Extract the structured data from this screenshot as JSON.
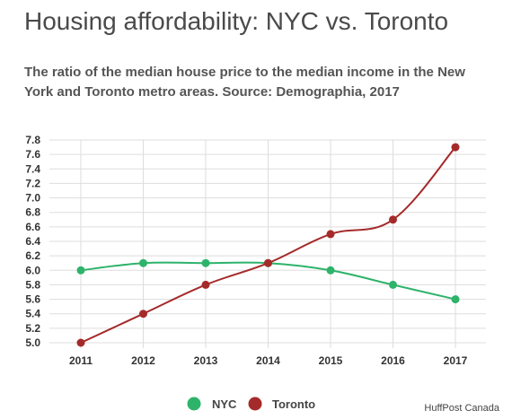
{
  "title": "Housing affordability: NYC vs. Toronto",
  "subtitle": "The ratio of the median house price to the median income in the New York and Toronto metro areas. Source: Demographia, 2017",
  "credit": "HuffPost Canada",
  "chart_data": {
    "type": "line",
    "x": [
      "2011",
      "2012",
      "2013",
      "2014",
      "2015",
      "2016",
      "2017"
    ],
    "series": [
      {
        "name": "NYC",
        "color": "#2db36a",
        "values": [
          6.0,
          6.1,
          6.1,
          6.1,
          6.0,
          5.8,
          5.6
        ]
      },
      {
        "name": "Toronto",
        "color": "#a52a2a",
        "values": [
          5.0,
          5.4,
          5.8,
          6.1,
          6.5,
          6.7,
          7.7
        ]
      }
    ],
    "yticks": [
      "5.0",
      "5.2",
      "5.4",
      "5.6",
      "5.8",
      "6.0",
      "6.2",
      "6.4",
      "6.6",
      "6.8",
      "7.0",
      "7.2",
      "7.4",
      "7.6",
      "7.8"
    ],
    "ylim": [
      5.0,
      7.8
    ],
    "grid": true,
    "legend": "bottom-center"
  }
}
